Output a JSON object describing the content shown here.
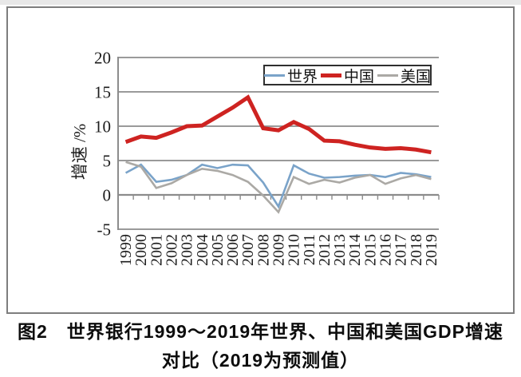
{
  "page": {
    "caption": {
      "line1": "图2　世界银行1999～2019年世界、中国和美国GDP增速",
      "line2": "对比（2019为预测值）"
    }
  },
  "chart_data": {
    "type": "line",
    "title": "",
    "xlabel": "",
    "ylabel": "增速 /%",
    "ylim": [
      -5,
      20
    ],
    "yticks": [
      20,
      15,
      10,
      5,
      0,
      -5
    ],
    "grid": "horizontal-gridlines",
    "legend_position": "top-right-inside",
    "axis_color": "#8c8c8c",
    "text_color": "#1c1c1c",
    "categories": [
      "1999",
      "2000",
      "2001",
      "2002",
      "2003",
      "2004",
      "2005",
      "2006",
      "2007",
      "2008",
      "2009",
      "2010",
      "2011",
      "2012",
      "2013",
      "2014",
      "2015",
      "2016",
      "2017",
      "2018",
      "2019"
    ],
    "series": [
      {
        "name": "世界",
        "color": "#7aa3c9",
        "width": 2.6,
        "values": [
          3.2,
          4.4,
          1.9,
          2.2,
          2.9,
          4.4,
          3.9,
          4.4,
          4.3,
          1.8,
          -1.7,
          4.3,
          3.1,
          2.5,
          2.6,
          2.8,
          2.9,
          2.6,
          3.2,
          3.0,
          2.6
        ]
      },
      {
        "name": "中国",
        "color": "#ce2321",
        "width": 5,
        "values": [
          7.7,
          8.5,
          8.3,
          9.1,
          10.0,
          10.1,
          11.4,
          12.7,
          14.2,
          9.7,
          9.4,
          10.6,
          9.6,
          7.9,
          7.8,
          7.3,
          6.9,
          6.7,
          6.8,
          6.6,
          6.2
        ]
      },
      {
        "name": "美国",
        "color": "#aba9a5",
        "width": 2.6,
        "values": [
          4.8,
          4.1,
          1.0,
          1.7,
          2.9,
          3.8,
          3.5,
          2.9,
          1.9,
          -0.1,
          -2.5,
          2.6,
          1.6,
          2.2,
          1.8,
          2.5,
          2.9,
          1.6,
          2.4,
          2.9,
          2.3
        ]
      }
    ]
  }
}
